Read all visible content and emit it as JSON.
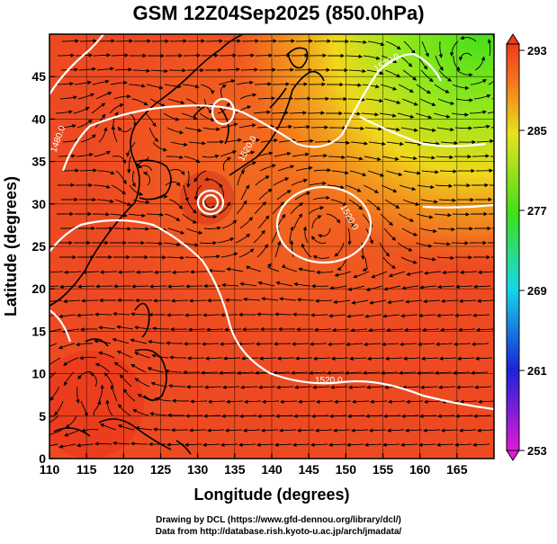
{
  "title": "GSM 12Z04Sep2025 (850.0hPa)",
  "xaxis": {
    "label": "Longitude (degrees)",
    "ticks": [
      "110",
      "115",
      "120",
      "125",
      "130",
      "135",
      "140",
      "145",
      "150",
      "155",
      "160",
      "165"
    ]
  },
  "yaxis": {
    "label": "Latitude  (degrees)",
    "ticks": [
      "0",
      "5",
      "10",
      "15",
      "20",
      "25",
      "30",
      "35",
      "40",
      "45"
    ]
  },
  "colorbar": {
    "ticks": [
      "253",
      "261",
      "269",
      "277",
      "285",
      "293"
    ]
  },
  "contour_labels": [
    "1480.0",
    "1520.0",
    "1520.0",
    "1520.0",
    "1520.0"
  ],
  "footer": {
    "line1": "Drawing by DCL (https://www.gfd-dennou.org/library/dcl/)",
    "line2": "Data from http://database.rish.kyoto-u.ac.jp/arch/jmadata/"
  },
  "colors": {
    "warm": "#f03a1a",
    "orange": "#f47c1c",
    "yellow": "#e8e21e",
    "green": "#3ee01a",
    "cyan": "#16d8e8",
    "blue": "#1a24d8",
    "magenta": "#e01ad8"
  }
}
